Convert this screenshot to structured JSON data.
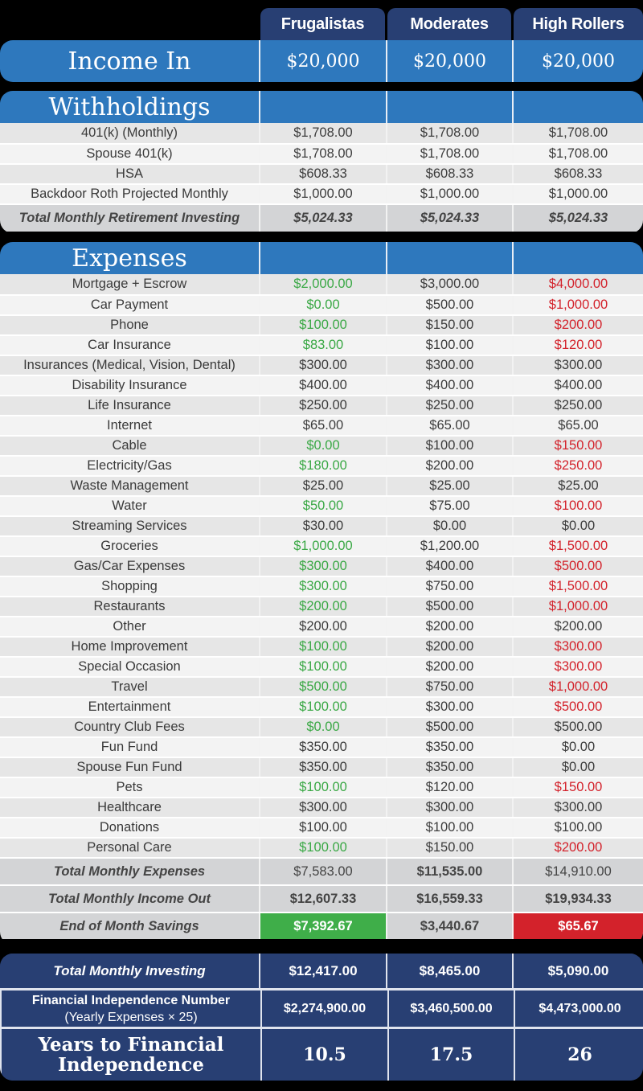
{
  "columns": [
    "Frugalistas",
    "Moderates",
    "High Rollers"
  ],
  "colors": {
    "header_navy": "#283f73",
    "section_blue": "#2e78bd",
    "good_green": "#3aa845",
    "bad_red": "#d3222b",
    "row_light": "#f3f3f3",
    "row_dark": "#e6e6e6",
    "total_gray": "#d3d4d6"
  },
  "income": {
    "label": "Income In",
    "values": [
      "$20,000",
      "$20,000",
      "$20,000"
    ]
  },
  "withholdings": {
    "title": "Withholdings",
    "rows": [
      {
        "label": "401(k) (Monthly)",
        "values": [
          "$1,708.00",
          "$1,708.00",
          "$1,708.00"
        ]
      },
      {
        "label": "Spouse 401(k)",
        "values": [
          "$1,708.00",
          "$1,708.00",
          "$1,708.00"
        ]
      },
      {
        "label": "HSA",
        "values": [
          "$608.33",
          "$608.33",
          "$608.33"
        ]
      },
      {
        "label": "Backdoor Roth Projected Monthly",
        "values": [
          "$1,000.00",
          "$1,000.00",
          "$1,000.00"
        ]
      }
    ],
    "total": {
      "label": "Total Monthly Retirement Investing",
      "values": [
        "$5,024.33",
        "$5,024.33",
        "$5,024.33"
      ]
    }
  },
  "expenses": {
    "title": "Expenses",
    "rows": [
      {
        "label": "Mortgage + Escrow",
        "values": [
          "$2,000.00",
          "$3,000.00",
          "$4,000.00"
        ],
        "tones": [
          "green",
          "neutral",
          "red"
        ]
      },
      {
        "label": "Car Payment",
        "values": [
          "$0.00",
          "$500.00",
          "$1,000.00"
        ],
        "tones": [
          "green",
          "neutral",
          "red"
        ]
      },
      {
        "label": "Phone",
        "values": [
          "$100.00",
          "$150.00",
          "$200.00"
        ],
        "tones": [
          "green",
          "neutral",
          "red"
        ]
      },
      {
        "label": "Car Insurance",
        "values": [
          "$83.00",
          "$100.00",
          "$120.00"
        ],
        "tones": [
          "green",
          "neutral",
          "red"
        ]
      },
      {
        "label": "Insurances (Medical, Vision, Dental)",
        "values": [
          "$300.00",
          "$300.00",
          "$300.00"
        ],
        "tones": [
          "neutral",
          "neutral",
          "neutral"
        ]
      },
      {
        "label": "Disability Insurance",
        "values": [
          "$400.00",
          "$400.00",
          "$400.00"
        ],
        "tones": [
          "neutral",
          "neutral",
          "neutral"
        ]
      },
      {
        "label": "Life Insurance",
        "values": [
          "$250.00",
          "$250.00",
          "$250.00"
        ],
        "tones": [
          "neutral",
          "neutral",
          "neutral"
        ]
      },
      {
        "label": "Internet",
        "values": [
          "$65.00",
          "$65.00",
          "$65.00"
        ],
        "tones": [
          "neutral",
          "neutral",
          "neutral"
        ]
      },
      {
        "label": "Cable",
        "values": [
          "$0.00",
          "$100.00",
          "$150.00"
        ],
        "tones": [
          "green",
          "neutral",
          "red"
        ]
      },
      {
        "label": "Electricity/Gas",
        "values": [
          "$180.00",
          "$200.00",
          "$250.00"
        ],
        "tones": [
          "green",
          "neutral",
          "red"
        ]
      },
      {
        "label": "Waste Management",
        "values": [
          "$25.00",
          "$25.00",
          "$25.00"
        ],
        "tones": [
          "neutral",
          "neutral",
          "neutral"
        ]
      },
      {
        "label": "Water",
        "values": [
          "$50.00",
          "$75.00",
          "$100.00"
        ],
        "tones": [
          "green",
          "neutral",
          "red"
        ]
      },
      {
        "label": "Streaming Services",
        "values": [
          "$30.00",
          "$0.00",
          "$0.00"
        ],
        "tones": [
          "neutral",
          "neutral",
          "neutral"
        ]
      },
      {
        "label": "Groceries",
        "values": [
          "$1,000.00",
          "$1,200.00",
          "$1,500.00"
        ],
        "tones": [
          "green",
          "neutral",
          "red"
        ]
      },
      {
        "label": "Gas/Car Expenses",
        "values": [
          "$300.00",
          "$400.00",
          "$500.00"
        ],
        "tones": [
          "green",
          "neutral",
          "red"
        ]
      },
      {
        "label": "Shopping",
        "values": [
          "$300.00",
          "$750.00",
          "$1,500.00"
        ],
        "tones": [
          "green",
          "neutral",
          "red"
        ]
      },
      {
        "label": "Restaurants",
        "values": [
          "$200.00",
          "$500.00",
          "$1,000.00"
        ],
        "tones": [
          "green",
          "neutral",
          "red"
        ]
      },
      {
        "label": "Other",
        "values": [
          "$200.00",
          "$200.00",
          "$200.00"
        ],
        "tones": [
          "neutral",
          "neutral",
          "neutral"
        ]
      },
      {
        "label": "Home Improvement",
        "values": [
          "$100.00",
          "$200.00",
          "$300.00"
        ],
        "tones": [
          "green",
          "neutral",
          "red"
        ]
      },
      {
        "label": "Special Occasion",
        "values": [
          "$100.00",
          "$200.00",
          "$300.00"
        ],
        "tones": [
          "green",
          "neutral",
          "red"
        ]
      },
      {
        "label": "Travel",
        "values": [
          "$500.00",
          "$750.00",
          "$1,000.00"
        ],
        "tones": [
          "green",
          "neutral",
          "red"
        ]
      },
      {
        "label": "Entertainment",
        "values": [
          "$100.00",
          "$300.00",
          "$500.00"
        ],
        "tones": [
          "green",
          "neutral",
          "red"
        ]
      },
      {
        "label": "Country Club Fees",
        "values": [
          "$0.00",
          "$500.00",
          "$500.00"
        ],
        "tones": [
          "green",
          "neutral",
          "neutral"
        ]
      },
      {
        "label": "Fun Fund",
        "values": [
          "$350.00",
          "$350.00",
          "$0.00"
        ],
        "tones": [
          "neutral",
          "neutral",
          "neutral"
        ]
      },
      {
        "label": "Spouse Fun Fund",
        "values": [
          "$350.00",
          "$350.00",
          "$0.00"
        ],
        "tones": [
          "neutral",
          "neutral",
          "neutral"
        ]
      },
      {
        "label": "Pets",
        "values": [
          "$100.00",
          "$120.00",
          "$150.00"
        ],
        "tones": [
          "green",
          "neutral",
          "red"
        ]
      },
      {
        "label": "Healthcare",
        "values": [
          "$300.00",
          "$300.00",
          "$300.00"
        ],
        "tones": [
          "neutral",
          "neutral",
          "neutral"
        ]
      },
      {
        "label": "Donations",
        "values": [
          "$100.00",
          "$100.00",
          "$100.00"
        ],
        "tones": [
          "neutral",
          "neutral",
          "neutral"
        ]
      },
      {
        "label": "Personal Care",
        "values": [
          "$100.00",
          "$150.00",
          "$200.00"
        ],
        "tones": [
          "green",
          "neutral",
          "red"
        ]
      }
    ],
    "total_expenses": {
      "label": "Total Monthly Expenses",
      "values": [
        "$7,583.00",
        "$11,535.00",
        "$14,910.00"
      ]
    },
    "total_income_out": {
      "label": "Total Monthly Income Out",
      "values": [
        "$12,607.33",
        "$16,559.33",
        "$19,934.33"
      ]
    },
    "end_savings": {
      "label": "End of Month Savings",
      "values": [
        "$7,392.67",
        "$3,440.67",
        "$65.67"
      ]
    }
  },
  "summary": {
    "investing": {
      "label": "Total Monthly Investing",
      "values": [
        "$12,417.00",
        "$8,465.00",
        "$5,090.00"
      ]
    },
    "fi_number": {
      "label_line1": "Financial Independence Number",
      "label_line2": "(Yearly Expenses × 25)",
      "values": [
        "$2,274,900.00",
        "$3,460,500.00",
        "$4,473,000.00"
      ]
    },
    "years": {
      "label_line1": "Years to Financial",
      "label_line2": "Independence",
      "values": [
        "10.5",
        "17.5",
        "26"
      ]
    }
  }
}
